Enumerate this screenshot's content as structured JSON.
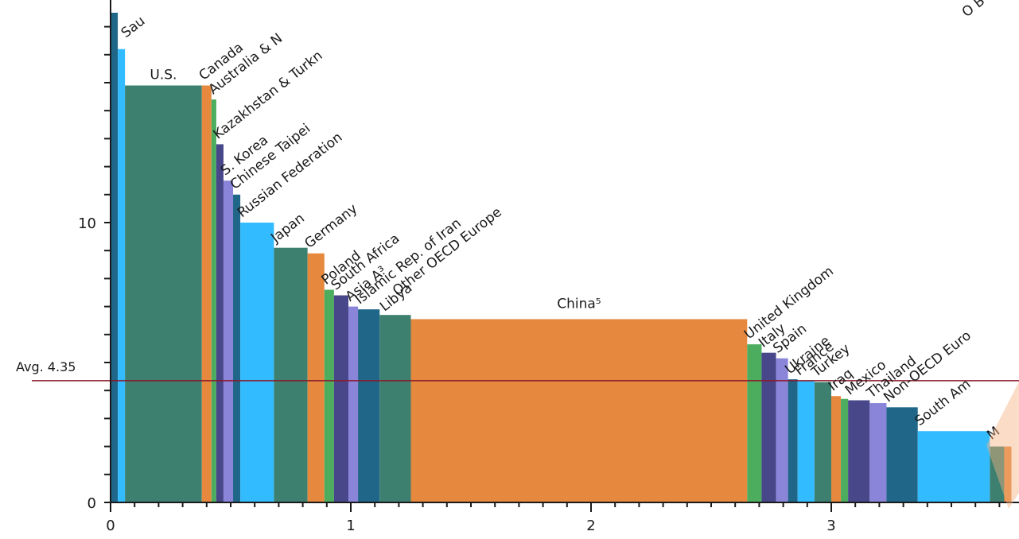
{
  "chart_data": {
    "type": "bar",
    "variable_width": true,
    "xlim": [
      0,
      3.72
    ],
    "ylim": [
      0,
      17.5
    ],
    "x_ticks": [
      0,
      1,
      2,
      3
    ],
    "x_tick_labels": [
      "0",
      "1",
      "2",
      "3"
    ],
    "y_ticks": [
      0,
      10
    ],
    "y_tick_labels": [
      "0",
      "10"
    ],
    "average": {
      "value": 4.35,
      "label": "Avg. 4.35",
      "color": "#8b1a2b"
    },
    "bars": [
      {
        "label": "Sau",
        "x0": 0.0,
        "x1": 0.03,
        "value": 17.5,
        "color": "#1f6688"
      },
      {
        "label": "",
        "x0": 0.03,
        "x1": 0.06,
        "value": 16.2,
        "color": "#33bbff"
      },
      {
        "label": "U.S.",
        "x0": 0.06,
        "x1": 0.38,
        "value": 14.9,
        "color": "#3d8070"
      },
      {
        "label": "Canada",
        "x0": 0.38,
        "x1": 0.42,
        "value": 14.9,
        "color": "#e6893e"
      },
      {
        "label": "Australia & N",
        "x0": 0.42,
        "x1": 0.44,
        "value": 14.4,
        "color": "#4cad5e"
      },
      {
        "label": "Kazakhstan & Turkn",
        "x0": 0.44,
        "x1": 0.47,
        "value": 12.8,
        "color": "#47478a"
      },
      {
        "label": "S. Korea",
        "x0": 0.47,
        "x1": 0.51,
        "value": 11.5,
        "color": "#8a85d9"
      },
      {
        "label": "Chinese Taipei",
        "x0": 0.51,
        "x1": 0.54,
        "value": 11.0,
        "color": "#1f6688"
      },
      {
        "label": "Russian Federation",
        "x0": 0.54,
        "x1": 0.68,
        "value": 10.0,
        "color": "#33bbff"
      },
      {
        "label": "Japan",
        "x0": 0.68,
        "x1": 0.82,
        "value": 9.1,
        "color": "#3d8070"
      },
      {
        "label": "Germany",
        "x0": 0.82,
        "x1": 0.89,
        "value": 8.9,
        "color": "#e6893e"
      },
      {
        "label": "Poland",
        "x0": 0.89,
        "x1": 0.93,
        "value": 7.6,
        "color": "#4cad5e"
      },
      {
        "label": "South Africa",
        "x0": 0.93,
        "x1": 0.99,
        "value": 7.4,
        "color": "#47478a"
      },
      {
        "label": "Asia A³",
        "x0": 0.99,
        "x1": 1.03,
        "value": 7.0,
        "color": "#8a85d9"
      },
      {
        "label": "Islamic Rep. of Iran",
        "x0": 1.03,
        "x1": 1.12,
        "value": 6.9,
        "color": "#1f6688"
      },
      {
        "label": "Libya",
        "x0": 1.12,
        "x1": 1.25,
        "value": 6.7,
        "color": "#3d8070"
      },
      {
        "label": "Other OECD Europe",
        "x0": 1.12,
        "x1": 1.25,
        "value": 6.7,
        "color": "#3d8070",
        "merged": true
      },
      {
        "label": "China⁵",
        "x0": 1.25,
        "x1": 2.65,
        "value": 6.55,
        "color": "#e6893e"
      },
      {
        "label": "United Kingdom",
        "x0": 2.65,
        "x1": 2.71,
        "value": 5.65,
        "color": "#4cad5e"
      },
      {
        "label": "Italy",
        "x0": 2.71,
        "x1": 2.77,
        "value": 5.35,
        "color": "#47478a"
      },
      {
        "label": "Spain",
        "x0": 2.77,
        "x1": 2.82,
        "value": 5.15,
        "color": "#8a85d9"
      },
      {
        "label": "Ukraine",
        "x0": 2.82,
        "x1": 2.86,
        "value": 4.4,
        "color": "#1f6688"
      },
      {
        "label": "France",
        "x0": 2.86,
        "x1": 2.93,
        "value": 4.35,
        "color": "#33bbff"
      },
      {
        "label": "Turkey",
        "x0": 2.93,
        "x1": 3.0,
        "value": 4.3,
        "color": "#3d8070"
      },
      {
        "label": "Iraq",
        "x0": 3.0,
        "x1": 3.04,
        "value": 3.8,
        "color": "#e6893e"
      },
      {
        "label": "",
        "x0": 3.04,
        "x1": 3.07,
        "value": 3.7,
        "color": "#4cad5e"
      },
      {
        "label": "Mexico",
        "x0": 3.07,
        "x1": 3.16,
        "value": 3.65,
        "color": "#47478a"
      },
      {
        "label": "Thailand",
        "x0": 3.16,
        "x1": 3.23,
        "value": 3.55,
        "color": "#8a85d9"
      },
      {
        "label": "Non-OECD Euro",
        "x0": 3.23,
        "x1": 3.36,
        "value": 3.4,
        "color": "#1f6688"
      },
      {
        "label": "South Am",
        "x0": 3.36,
        "x1": 3.66,
        "value": 2.55,
        "color": "#33bbff"
      },
      {
        "label": "M",
        "x0": 3.66,
        "x1": 3.72,
        "value": 2.0,
        "color": "#3d8070"
      },
      {
        "label": "",
        "x0": 3.72,
        "x1": 3.75,
        "value": 2.0,
        "color": "#e6893e"
      }
    ],
    "partial_labels": [
      {
        "text": "O B",
        "note": "cut off at top-right corner"
      }
    ]
  }
}
